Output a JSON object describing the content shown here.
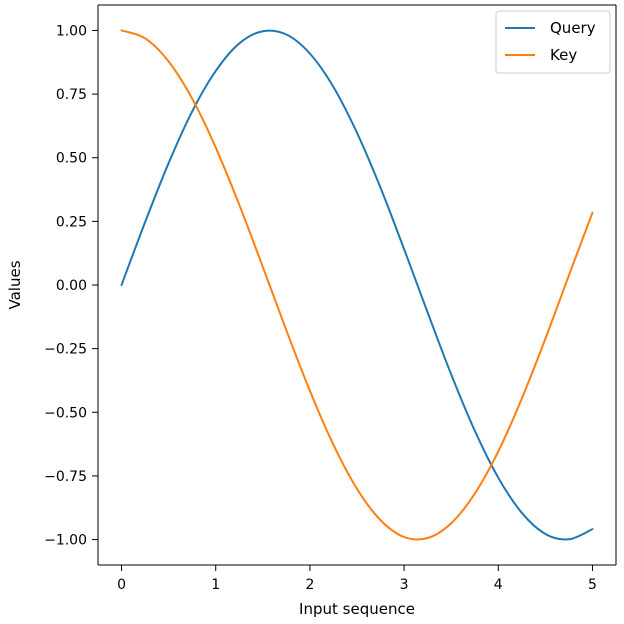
{
  "chart_data": {
    "type": "line",
    "title": "",
    "xlabel": "Input sequence",
    "ylabel": "Values",
    "xlim": [
      -0.25,
      5.25
    ],
    "ylim": [
      -1.1,
      1.1
    ],
    "xticks": [
      0,
      1,
      2,
      3,
      4,
      5
    ],
    "xtick_labels": [
      "0",
      "1",
      "2",
      "3",
      "4",
      "5"
    ],
    "yticks": [
      1.0,
      0.75,
      0.5,
      0.25,
      0.0,
      -0.25,
      -0.5,
      -0.75,
      -1.0
    ],
    "ytick_labels": [
      "1.00",
      "0.75",
      "0.50",
      "0.25",
      "0.00",
      "−0.25",
      "−0.50",
      "−0.75",
      "−1.00"
    ],
    "grid": false,
    "legend_position": "top-right",
    "x": [
      0,
      0.25,
      0.5,
      0.75,
      1,
      1.25,
      1.5,
      1.75,
      2,
      2.25,
      2.5,
      2.75,
      3,
      3.25,
      3.5,
      3.75,
      4,
      4.25,
      4.5,
      4.75,
      5
    ],
    "series": [
      {
        "name": "Query",
        "color": "#1f77b4",
        "values": [
          0,
          0.247,
          0.479,
          0.682,
          0.841,
          0.949,
          0.997,
          0.984,
          0.909,
          0.778,
          0.598,
          0.382,
          0.141,
          -0.108,
          -0.351,
          -0.572,
          -0.757,
          -0.895,
          -0.978,
          -0.999,
          -0.959
        ]
      },
      {
        "name": "Key",
        "color": "#ff7f0e",
        "values": [
          1,
          0.969,
          0.878,
          0.732,
          0.54,
          0.315,
          0.071,
          -0.178,
          -0.416,
          -0.628,
          -0.801,
          -0.924,
          -0.99,
          -0.994,
          -0.936,
          -0.82,
          -0.654,
          -0.446,
          -0.211,
          0.038,
          0.284
        ]
      }
    ]
  }
}
